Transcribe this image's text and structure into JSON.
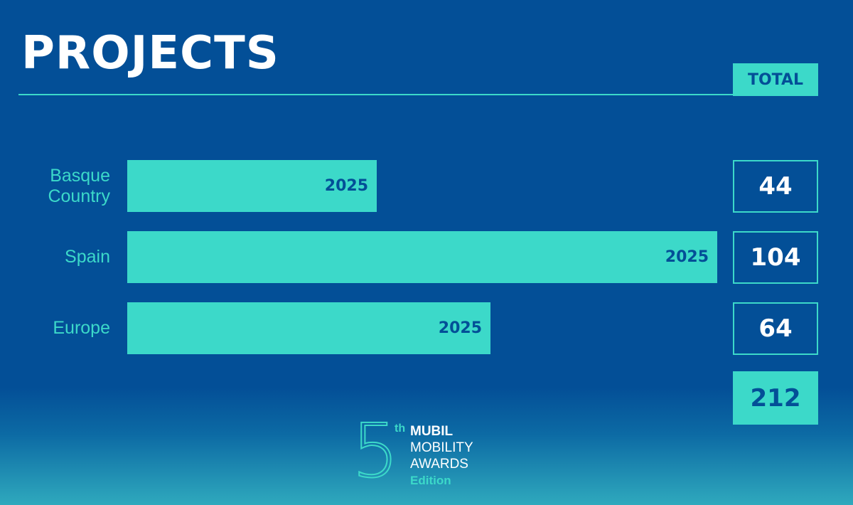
{
  "header": {
    "title": "PROJECTS",
    "total_label": "TOTAL"
  },
  "chart_data": {
    "type": "bar",
    "orientation": "horizontal",
    "title": "PROJECTS",
    "categories": [
      "Basque\nCountry",
      "Spain",
      "Europe"
    ],
    "series": [
      {
        "values": [
          44,
          104,
          64
        ],
        "bar_label": "2025"
      }
    ],
    "totals": [
      "44",
      "104",
      "64"
    ],
    "grand_total": "212",
    "xlim": [
      0,
      104
    ]
  },
  "logo": {
    "edition_number": "5",
    "edition_suffix": "th",
    "brand": "MUBIL",
    "line2": "MOBILITY",
    "line3": "AWARDS",
    "line4": "Edition"
  },
  "colors": {
    "background": "#034f97",
    "accent": "#3cd9c9",
    "text_light": "#ffffff"
  }
}
